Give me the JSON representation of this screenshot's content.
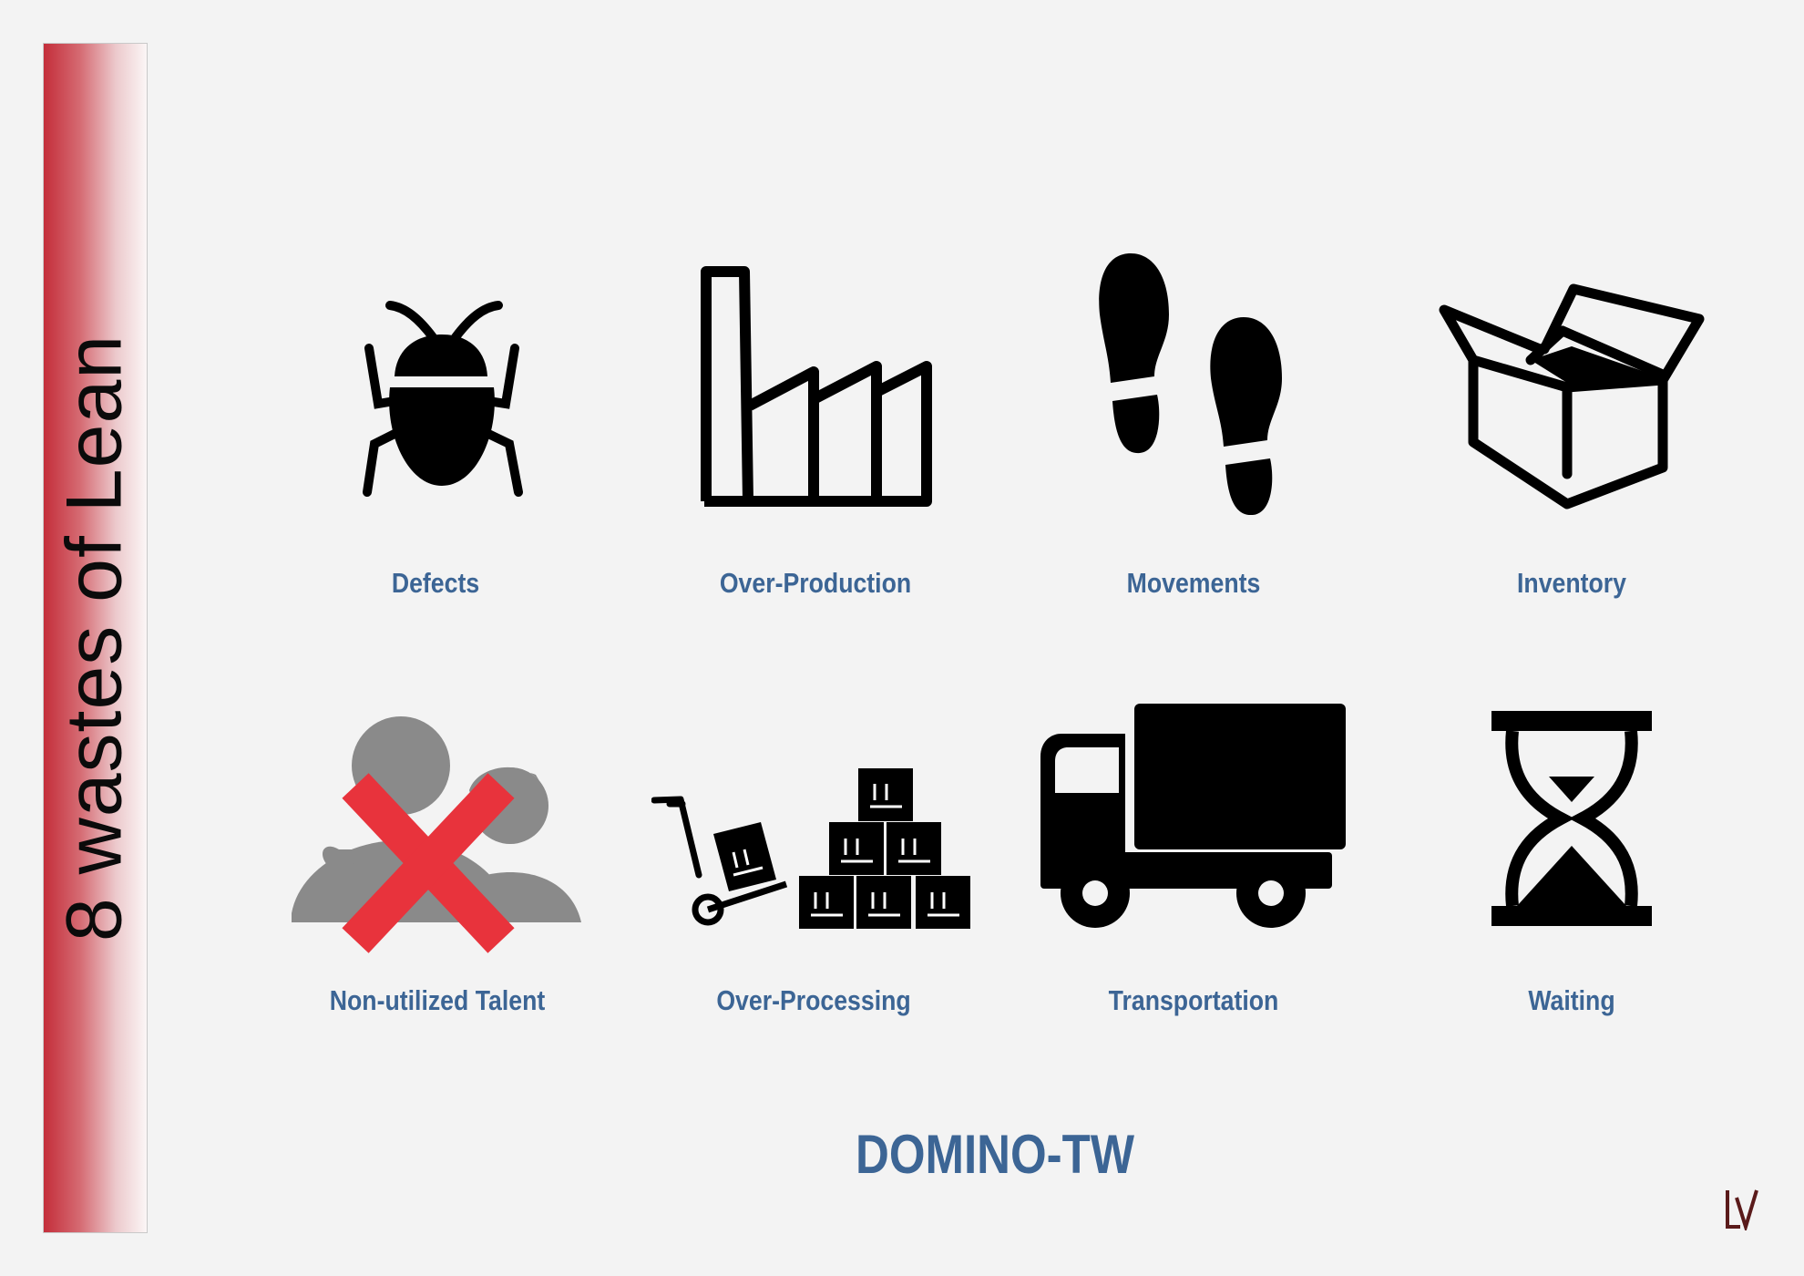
{
  "sidebar": {
    "title": "8 wastes of Lean"
  },
  "wastes": [
    {
      "label": "Defects",
      "icon": "bug-icon"
    },
    {
      "label": "Over-Production",
      "icon": "factory-icon"
    },
    {
      "label": "Movements",
      "icon": "footprints-icon"
    },
    {
      "label": "Inventory",
      "icon": "open-box-icon"
    },
    {
      "label": "Non-utilized Talent",
      "icon": "crossed-people-icon"
    },
    {
      "label": "Over-Processing",
      "icon": "hand-truck-boxes-icon"
    },
    {
      "label": "Transportation",
      "icon": "truck-icon"
    },
    {
      "label": "Waiting",
      "icon": "hourglass-icon"
    }
  ],
  "brand": "DOMINO-TW",
  "colors": {
    "label": "#3c6595",
    "sidebar_red": "#c42e3a",
    "cross_red": "#e8333c",
    "people_gray": "#8a8a8a",
    "icon_black": "#000000"
  }
}
